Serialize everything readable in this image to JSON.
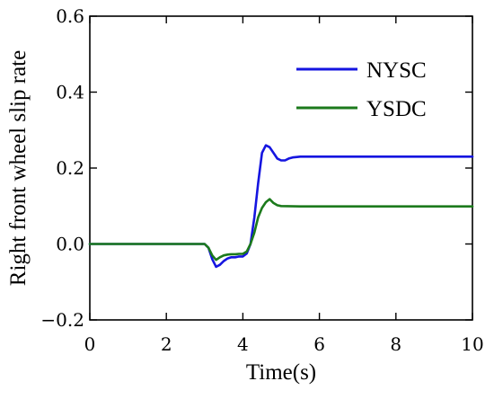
{
  "chart_data": {
    "type": "line",
    "xlabel": "Time(s)",
    "ylabel": "Right front wheel slip rate",
    "xlim": [
      0,
      10
    ],
    "ylim": [
      -0.2,
      0.6
    ],
    "xticks": [
      0,
      2,
      4,
      6,
      8,
      10
    ],
    "xtick_labels": [
      "0",
      "2",
      "4",
      "6",
      "8",
      "10"
    ],
    "yticks": [
      -0.2,
      0.0,
      0.2,
      0.4,
      0.6
    ],
    "ytick_labels": [
      "−0.2",
      "0.0",
      "0.2",
      "0.4",
      "0.6"
    ],
    "grid": false,
    "legend_position": "top-right",
    "series": [
      {
        "name": "NYSC",
        "color": "#1515e0",
        "x": [
          0,
          1,
          2,
          3,
          3.1,
          3.2,
          3.3,
          3.4,
          3.5,
          3.6,
          3.7,
          3.8,
          3.9,
          4.0,
          4.1,
          4.2,
          4.3,
          4.4,
          4.5,
          4.6,
          4.7,
          4.8,
          4.9,
          5.0,
          5.1,
          5.2,
          5.3,
          5.5,
          6.0,
          7.0,
          8.0,
          9.0,
          10.0
        ],
        "y": [
          0,
          0,
          0,
          0,
          -0.01,
          -0.04,
          -0.06,
          -0.055,
          -0.045,
          -0.038,
          -0.035,
          -0.035,
          -0.033,
          -0.033,
          -0.025,
          0.0,
          0.07,
          0.16,
          0.24,
          0.26,
          0.255,
          0.24,
          0.225,
          0.22,
          0.22,
          0.225,
          0.228,
          0.23,
          0.23,
          0.23,
          0.23,
          0.23,
          0.23
        ]
      },
      {
        "name": "YSDC",
        "color": "#1c7a1c",
        "x": [
          0,
          1,
          2,
          3,
          3.1,
          3.2,
          3.3,
          3.4,
          3.5,
          3.6,
          3.7,
          3.8,
          3.9,
          4.0,
          4.1,
          4.2,
          4.3,
          4.4,
          4.5,
          4.6,
          4.7,
          4.8,
          4.9,
          5.0,
          5.5,
          6.0,
          7.0,
          8.0,
          9.0,
          10.0
        ],
        "y": [
          0,
          0,
          0,
          0,
          -0.01,
          -0.03,
          -0.042,
          -0.035,
          -0.03,
          -0.028,
          -0.027,
          -0.027,
          -0.026,
          -0.026,
          -0.02,
          0.0,
          0.03,
          0.07,
          0.095,
          0.11,
          0.118,
          0.108,
          0.102,
          0.1,
          0.099,
          0.099,
          0.099,
          0.099,
          0.099,
          0.099
        ]
      }
    ]
  }
}
